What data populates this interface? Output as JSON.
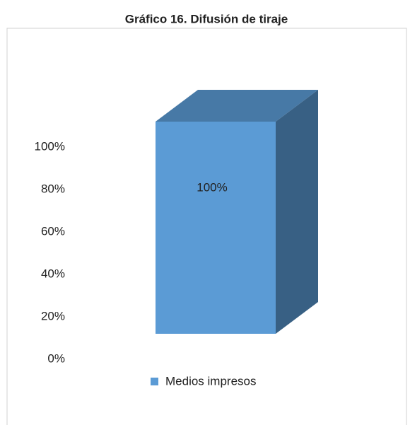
{
  "chart_data": {
    "type": "bar3d",
    "title": "Gráfico 16. Difusión de tiraje",
    "categories": [
      null
    ],
    "series": [
      {
        "name": "Medios impresos",
        "color": "#5b9bd5",
        "values": [
          100
        ],
        "value_labels": [
          "100%"
        ]
      }
    ],
    "ylim": [
      0,
      100
    ],
    "yticks": [
      {
        "value": 0,
        "label": "0%"
      },
      {
        "value": 20,
        "label": "20%"
      },
      {
        "value": 40,
        "label": "40%"
      },
      {
        "value": 60,
        "label": "60%"
      },
      {
        "value": 80,
        "label": "80%"
      },
      {
        "value": 100,
        "label": "100%"
      }
    ],
    "grid": false,
    "legend": "bottom"
  }
}
